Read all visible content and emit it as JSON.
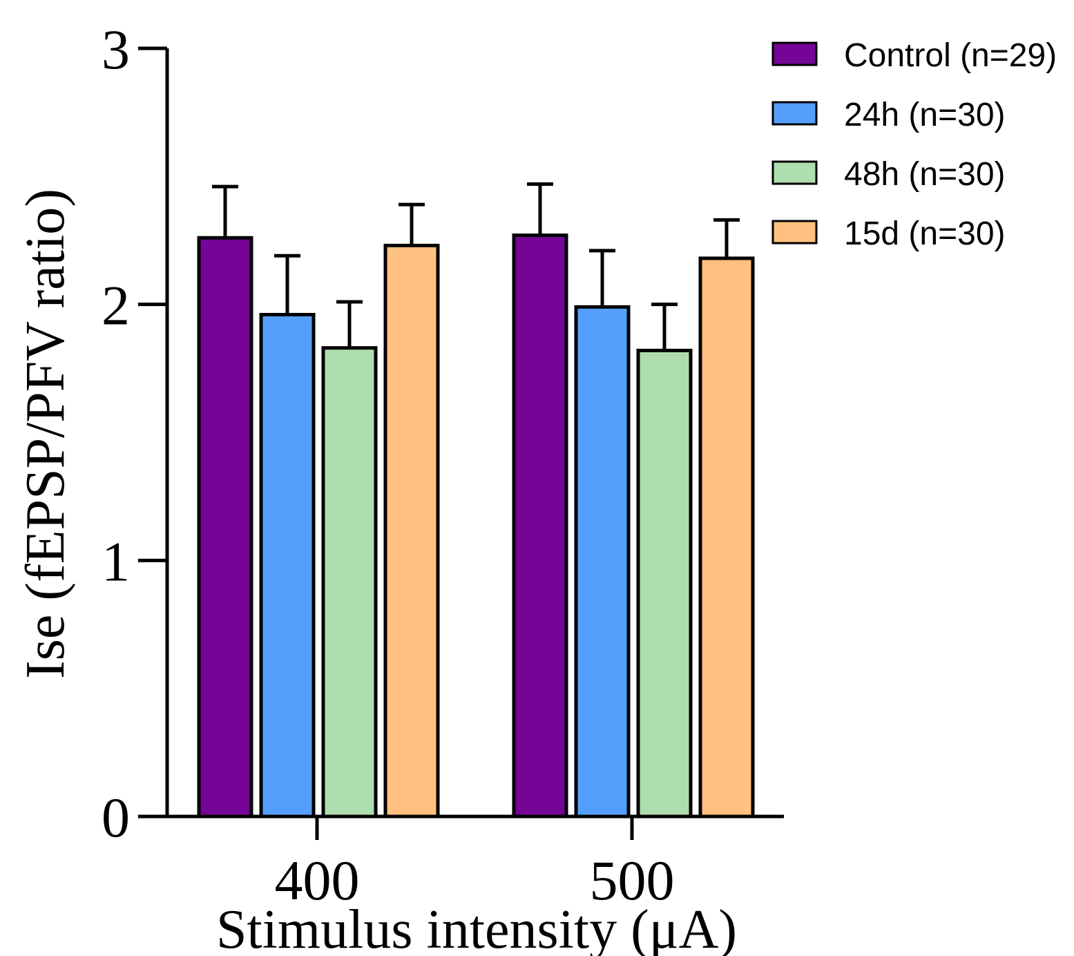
{
  "chart_data": {
    "type": "bar",
    "xlabel": "Stimulus intensity (μA)",
    "ylabel": "Ise (fEPSP/PFV ratio)",
    "ylim": [
      0,
      3
    ],
    "yticks": [
      "0",
      "1",
      "2",
      "3"
    ],
    "categories": [
      "400",
      "500"
    ],
    "error_bars": "one-sided upward",
    "grid": false,
    "legend_position": "top-right",
    "series": [
      {
        "name": "Control (n=29)",
        "color": "#740596",
        "values": [
          2.26,
          2.27
        ],
        "errors": [
          0.2,
          0.2
        ]
      },
      {
        "name": "24h (n=30)",
        "color": "#559FFC",
        "values": [
          1.96,
          1.99
        ],
        "errors": [
          0.23,
          0.22
        ]
      },
      {
        "name": "48h (n=30)",
        "color": "#AEDEAE",
        "values": [
          1.83,
          1.82
        ],
        "errors": [
          0.18,
          0.18
        ]
      },
      {
        "name": "15d (n=30)",
        "color": "#FFC080",
        "values": [
          2.23,
          2.18
        ],
        "errors": [
          0.16,
          0.15
        ]
      }
    ]
  }
}
